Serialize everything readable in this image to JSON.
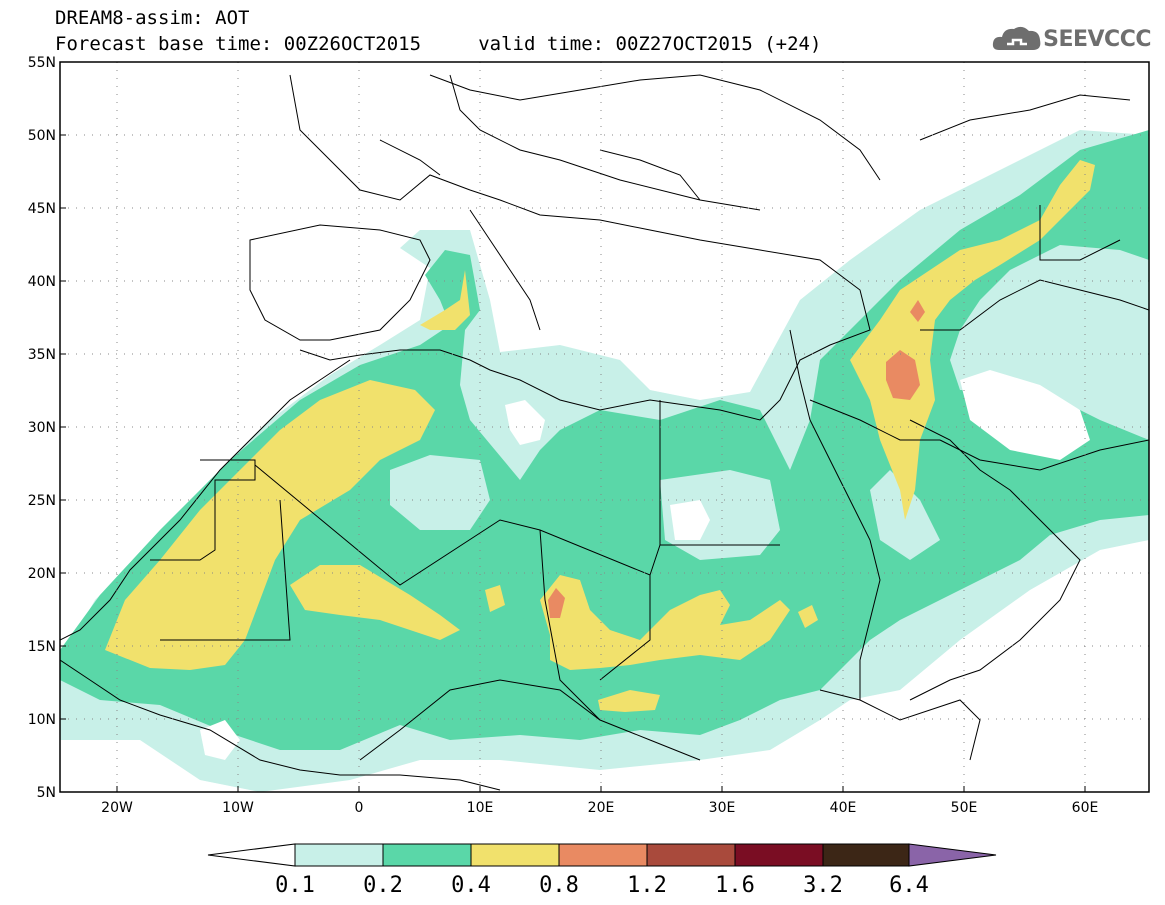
{
  "header": {
    "title_line1": "DREAM8-assim: AOT",
    "title_line2": "Forecast base time: 00Z26OCT2015     valid time: 00Z27OCT2015 (+24)"
  },
  "logo": {
    "text": "SEEVCCC",
    "icon": "cloud-icon"
  },
  "map": {
    "lat_labels": [
      "55N",
      "50N",
      "45N",
      "40N",
      "35N",
      "30N",
      "25N",
      "20N",
      "15N",
      "10N",
      "5N"
    ],
    "lon_labels": [
      "20W",
      "10W",
      "0",
      "10E",
      "20E",
      "30E",
      "40E",
      "50E",
      "60E"
    ],
    "lat_range": [
      5,
      55
    ],
    "lon_range": [
      -25,
      65
    ],
    "gridlines": true
  },
  "colorbar": {
    "labels": [
      "0.1",
      "0.2",
      "0.4",
      "0.8",
      "1.2",
      "1.6",
      "3.2",
      "6.4"
    ],
    "colors": [
      "#c8f0e8",
      "#5ad7a8",
      "#f1e16c",
      "#e98a62",
      "#a94a3c",
      "#7a0d23",
      "#3c2616",
      "#8a64a8"
    ],
    "under_color": "#ffffff"
  }
}
